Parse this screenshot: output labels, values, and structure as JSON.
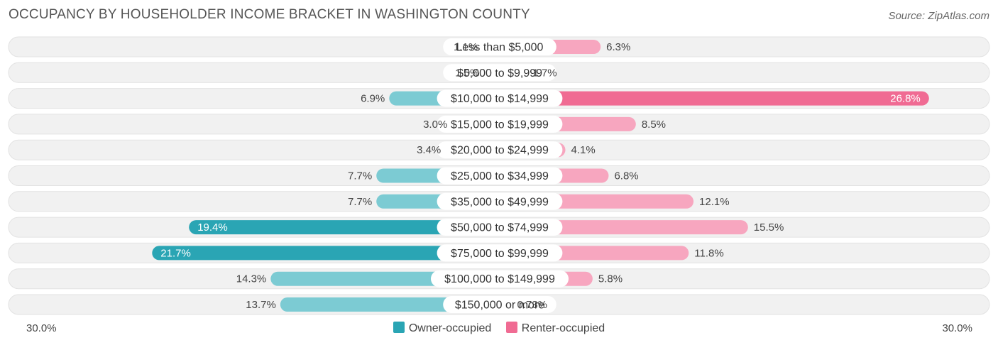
{
  "title": "OCCUPANCY BY HOUSEHOLDER INCOME BRACKET IN WASHINGTON COUNTY",
  "source": "Source: ZipAtlas.com",
  "axis": {
    "left_label": "30.0%",
    "right_label": "30.0%",
    "max": 30.0
  },
  "legend": {
    "owner_label": "Owner-occupied",
    "renter_label": "Renter-occupied"
  },
  "colors": {
    "owner": "#2aa5b4",
    "owner_light": "#7ccbd3",
    "renter": "#f06b93",
    "renter_light": "#f7a6bf",
    "row_bg": "#f1f1f1",
    "row_border": "#e2e2e2"
  },
  "chart_data": {
    "type": "bar",
    "orientation": "diverging-horizontal",
    "title": "OCCUPANCY BY HOUSEHOLDER INCOME BRACKET IN WASHINGTON COUNTY",
    "categories": [
      "Less than $5,000",
      "$5,000 to $9,999",
      "$10,000 to $14,999",
      "$15,000 to $19,999",
      "$20,000 to $24,999",
      "$25,000 to $34,999",
      "$35,000 to $49,999",
      "$50,000 to $74,999",
      "$75,000 to $99,999",
      "$100,000 to $149,999",
      "$150,000 or more"
    ],
    "series": [
      {
        "name": "Owner-occupied",
        "values": [
          1.1,
          1.0,
          6.9,
          3.0,
          3.4,
          7.7,
          7.7,
          19.4,
          21.7,
          14.3,
          13.7
        ],
        "labels": [
          "1.1%",
          "1.0%",
          "6.9%",
          "3.0%",
          "3.4%",
          "7.7%",
          "7.7%",
          "19.4%",
          "21.7%",
          "14.3%",
          "13.7%"
        ]
      },
      {
        "name": "Renter-occupied",
        "values": [
          6.3,
          1.7,
          26.8,
          8.5,
          4.1,
          6.8,
          12.1,
          15.5,
          11.8,
          5.8,
          0.73
        ],
        "labels": [
          "6.3%",
          "1.7%",
          "26.8%",
          "8.5%",
          "4.1%",
          "6.8%",
          "12.1%",
          "15.5%",
          "11.8%",
          "5.8%",
          "0.73%"
        ]
      }
    ],
    "xlim": [
      -30,
      30
    ],
    "xlabel": "",
    "ylabel": ""
  }
}
